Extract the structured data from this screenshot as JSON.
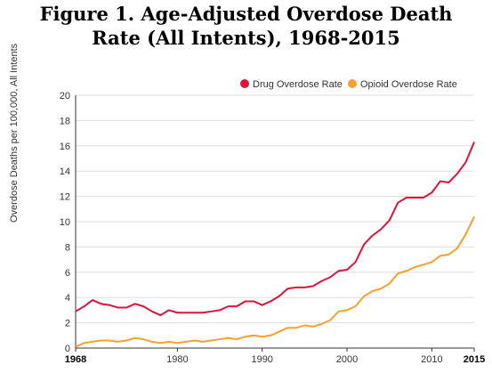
{
  "title_line1": "Figure 1. Age-Adjusted Overdose Death",
  "title_line2": "Rate (All Intents), 1968-2015",
  "colors": {
    "drug": "#dc143c",
    "opioid": "#f5a030",
    "grid": "#dddddd",
    "axis": "#333333"
  },
  "chart_data": {
    "type": "line",
    "title": "Figure 1. Age-Adjusted Overdose Death Rate (All Intents), 1968-2015",
    "xlabel": "",
    "ylabel": "Overdose Deaths per 100,000, All Intents",
    "xlim": [
      1968,
      2015
    ],
    "ylim": [
      0,
      20
    ],
    "yticks": [
      0,
      2,
      4,
      6,
      8,
      10,
      12,
      14,
      16,
      18,
      20
    ],
    "xticks": [
      "1968",
      "1980",
      "1990",
      "2000",
      "2010",
      "2015"
    ],
    "xtick_values": [
      1968,
      1980,
      1990,
      2000,
      2010,
      2015
    ],
    "grid": "horizontal",
    "legend": "top-right",
    "x": [
      1968,
      1969,
      1970,
      1971,
      1972,
      1973,
      1974,
      1975,
      1976,
      1977,
      1978,
      1979,
      1980,
      1981,
      1982,
      1983,
      1984,
      1985,
      1986,
      1987,
      1988,
      1989,
      1990,
      1991,
      1992,
      1993,
      1994,
      1995,
      1996,
      1997,
      1998,
      1999,
      2000,
      2001,
      2002,
      2003,
      2004,
      2005,
      2006,
      2007,
      2008,
      2009,
      2010,
      2011,
      2012,
      2013,
      2014,
      2015
    ],
    "series": [
      {
        "name": "Drug Overdose Rate",
        "values": [
          2.9,
          3.3,
          3.8,
          3.5,
          3.4,
          3.2,
          3.2,
          3.5,
          3.3,
          2.9,
          2.6,
          3.0,
          2.8,
          2.8,
          2.8,
          2.8,
          2.9,
          3.0,
          3.3,
          3.3,
          3.7,
          3.7,
          3.4,
          3.7,
          4.1,
          4.7,
          4.8,
          4.8,
          4.9,
          5.3,
          5.6,
          6.1,
          6.2,
          6.8,
          8.2,
          8.9,
          9.4,
          10.1,
          11.5,
          11.9,
          11.9,
          11.9,
          12.3,
          13.2,
          13.1,
          13.8,
          14.7,
          16.3
        ]
      },
      {
        "name": "Opioid Overdose Rate",
        "values": [
          0.1,
          0.4,
          0.5,
          0.6,
          0.6,
          0.5,
          0.6,
          0.8,
          0.7,
          0.5,
          0.4,
          0.5,
          0.4,
          0.5,
          0.6,
          0.5,
          0.6,
          0.7,
          0.8,
          0.7,
          0.9,
          1.0,
          0.9,
          1.0,
          1.3,
          1.6,
          1.6,
          1.8,
          1.7,
          1.9,
          2.2,
          2.9,
          3.0,
          3.3,
          4.1,
          4.5,
          4.7,
          5.1,
          5.9,
          6.1,
          6.4,
          6.6,
          6.8,
          7.3,
          7.4,
          7.9,
          9.0,
          10.4
        ]
      }
    ]
  }
}
